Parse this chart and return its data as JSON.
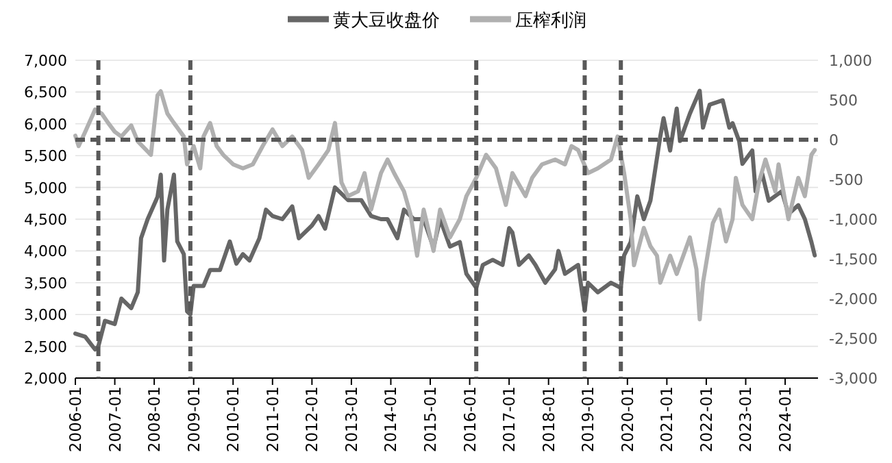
{
  "chart_data": {
    "type": "line",
    "xlim": [
      "2006-01",
      "2024-11"
    ],
    "xticks": [
      "2006-01",
      "2007-01",
      "2008-01",
      "2009-01",
      "2010-01",
      "2011-01",
      "2012-01",
      "2013-01",
      "2014-01",
      "2015-01",
      "2016-01",
      "2017-01",
      "2018-01",
      "2019-01",
      "2020-01",
      "2021-01",
      "2022-01",
      "2023-01",
      "2024-01"
    ],
    "ylim": [
      2000,
      7000
    ],
    "yticks": [
      {
        "value": 2000,
        "label": "2,000"
      },
      {
        "value": 2500,
        "label": "2,500"
      },
      {
        "value": 3000,
        "label": "3,000"
      },
      {
        "value": 3500,
        "label": "3,500"
      },
      {
        "value": 4000,
        "label": "4,000"
      },
      {
        "value": 4500,
        "label": "4,500"
      },
      {
        "value": 5000,
        "label": "5,000"
      },
      {
        "value": 5500,
        "label": "5,500"
      },
      {
        "value": 6000,
        "label": "6,000"
      },
      {
        "value": 6500,
        "label": "6,500"
      },
      {
        "value": 7000,
        "label": "7,000"
      }
    ],
    "y2lim": [
      -3000,
      1000
    ],
    "y2ticks": [
      {
        "value": -3000,
        "label": "-3,000"
      },
      {
        "value": -2500,
        "label": "-2,500"
      },
      {
        "value": -2000,
        "label": "-2,000"
      },
      {
        "value": -1500,
        "label": "-1,500"
      },
      {
        "value": -1000,
        "label": "-1,000"
      },
      {
        "value": -500,
        "label": "-500"
      },
      0,
      500,
      {
        "value": 1000,
        "label": "1,000"
      }
    ],
    "grid": "y",
    "legend": "top",
    "ref_lines": [
      {
        "axis": "x",
        "value": "2006-08",
        "color": "#595959",
        "line_style": "dashed"
      },
      {
        "axis": "x",
        "value": "2008-12",
        "color": "#595959",
        "line_style": "dashed"
      },
      {
        "axis": "x",
        "value": "2016-03",
        "color": "#595959",
        "line_style": "dashed"
      },
      {
        "axis": "x",
        "value": "2018-12",
        "color": "#595959",
        "line_style": "dashed"
      },
      {
        "axis": "x",
        "value": "2019-11",
        "color": "#595959",
        "line_style": "dashed"
      },
      {
        "axis": "y2",
        "value": 0,
        "color": "#595959",
        "line_style": "dashed"
      }
    ],
    "series": [
      {
        "name": "黄大豆收盘价",
        "color": "#666666",
        "x": [
          "2006-01",
          "2006-04",
          "2006-07",
          "2006-08",
          "2006-10",
          "2007-01",
          "2007-03",
          "2007-06",
          "2007-08",
          "2007-09",
          "2007-11",
          "2008-02",
          "2008-03",
          "2008-04",
          "2008-05",
          "2008-07",
          "2008-08",
          "2008-10",
          "2008-11",
          "2008-12",
          "2009-01",
          "2009-04",
          "2009-06",
          "2009-09",
          "2009-12",
          "2010-02",
          "2010-04",
          "2010-06",
          "2010-09",
          "2010-11",
          "2011-01",
          "2011-04",
          "2011-07",
          "2011-09",
          "2012-01",
          "2012-03",
          "2012-05",
          "2012-08",
          "2012-12",
          "2013-04",
          "2013-07",
          "2013-10",
          "2013-12",
          "2014-03",
          "2014-05",
          "2014-08",
          "2014-11",
          "2015-02",
          "2015-04",
          "2015-07",
          "2015-10",
          "2015-12",
          "2016-03",
          "2016-05",
          "2016-08",
          "2016-11",
          "2017-01",
          "2017-02",
          "2017-04",
          "2017-07",
          "2017-09",
          "2017-12",
          "2018-03",
          "2018-04",
          "2018-06",
          "2018-10",
          "2018-12",
          "2019-01",
          "2019-04",
          "2019-08",
          "2019-11",
          "2019-12",
          "2020-02",
          "2020-04",
          "2020-06",
          "2020-08",
          "2020-11",
          "2020-12",
          "2021-02",
          "2021-04",
          "2021-05",
          "2021-08",
          "2021-11",
          "2021-12",
          "2022-02",
          "2022-06",
          "2022-08",
          "2022-09",
          "2022-11",
          "2022-12",
          "2023-03",
          "2023-04",
          "2023-06",
          "2023-08",
          "2023-12",
          "2024-02",
          "2024-05",
          "2024-07",
          "2024-09",
          "2024-10"
        ],
        "values": [
          2700,
          2650,
          2450,
          2500,
          2900,
          2850,
          3250,
          3100,
          3350,
          4200,
          4500,
          4850,
          5200,
          3850,
          4650,
          5200,
          4150,
          3950,
          3050,
          3000,
          3450,
          3450,
          3700,
          3700,
          4150,
          3800,
          3950,
          3850,
          4200,
          4650,
          4550,
          4500,
          4700,
          4200,
          4400,
          4550,
          4350,
          5000,
          4800,
          4800,
          4550,
          4500,
          4500,
          4200,
          4650,
          4500,
          4500,
          4050,
          4500,
          4070,
          4140,
          3640,
          3420,
          3780,
          3860,
          3780,
          4360,
          4290,
          3780,
          3930,
          3780,
          3500,
          3710,
          4000,
          3640,
          3780,
          3060,
          3500,
          3350,
          3500,
          3420,
          3930,
          4140,
          4860,
          4500,
          4790,
          5800,
          6090,
          5580,
          6240,
          5730,
          6160,
          6520,
          5940,
          6300,
          6370,
          5940,
          6010,
          5730,
          5370,
          5580,
          4940,
          5220,
          4790,
          4940,
          4580,
          4720,
          4500,
          4140,
          3930
        ]
      },
      {
        "name": "压榨利润",
        "color": "#b0b0b0",
        "axis": "y2",
        "x": [
          "2006-01",
          "2006-02",
          "2006-04",
          "2006-07",
          "2006-09",
          "2006-11",
          "2007-01",
          "2007-03",
          "2007-06",
          "2007-08",
          "2007-12",
          "2008-02",
          "2008-03",
          "2008-05",
          "2008-07",
          "2008-10",
          "2008-11",
          "2009-01",
          "2009-03",
          "2009-04",
          "2009-06",
          "2009-08",
          "2009-10",
          "2010-01",
          "2010-04",
          "2010-07",
          "2010-10",
          "2011-01",
          "2011-04",
          "2011-07",
          "2011-10",
          "2011-12",
          "2012-03",
          "2012-06",
          "2012-08",
          "2012-10",
          "2012-12",
          "2013-03",
          "2013-05",
          "2013-07",
          "2013-10",
          "2013-12",
          "2014-02",
          "2014-05",
          "2014-07",
          "2014-09",
          "2014-11",
          "2015-02",
          "2015-04",
          "2015-07",
          "2015-10",
          "2015-12",
          "2016-03",
          "2016-06",
          "2016-09",
          "2016-12",
          "2017-02",
          "2017-06",
          "2017-08",
          "2017-11",
          "2018-03",
          "2018-06",
          "2018-08",
          "2018-10",
          "2019-01",
          "2019-04",
          "2019-08",
          "2019-10",
          "2019-12",
          "2020-02",
          "2020-03",
          "2020-06",
          "2020-08",
          "2020-10",
          "2020-11",
          "2021-02",
          "2021-04",
          "2021-08",
          "2021-10",
          "2021-11",
          "2021-12",
          "2022-03",
          "2022-05",
          "2022-07",
          "2022-09",
          "2022-10",
          "2022-12",
          "2023-03",
          "2023-05",
          "2023-07",
          "2023-10",
          "2023-11",
          "2024-02",
          "2024-05",
          "2024-07",
          "2024-09",
          "2024-10"
        ],
        "values": [
          50,
          -80,
          100,
          380,
          330,
          210,
          100,
          40,
          180,
          -20,
          -190,
          560,
          610,
          330,
          210,
          40,
          -310,
          -80,
          -360,
          40,
          210,
          -80,
          -190,
          -310,
          -360,
          -310,
          -80,
          130,
          -80,
          40,
          -130,
          -480,
          -310,
          -130,
          210,
          -540,
          -710,
          -650,
          -420,
          -880,
          -420,
          -250,
          -420,
          -650,
          -940,
          -1460,
          -880,
          -1400,
          -880,
          -1230,
          -1000,
          -710,
          -480,
          -190,
          -360,
          -820,
          -420,
          -710,
          -480,
          -310,
          -250,
          -310,
          -80,
          -130,
          -420,
          -360,
          -250,
          40,
          -420,
          -1000,
          -1580,
          -1110,
          -1340,
          -1460,
          -1800,
          -1460,
          -1690,
          -1230,
          -1630,
          -2260,
          -1800,
          -1050,
          -880,
          -1280,
          -1000,
          -480,
          -820,
          -1000,
          -540,
          -250,
          -650,
          -310,
          -1000,
          -480,
          -710,
          -190,
          -130
        ]
      }
    ]
  }
}
